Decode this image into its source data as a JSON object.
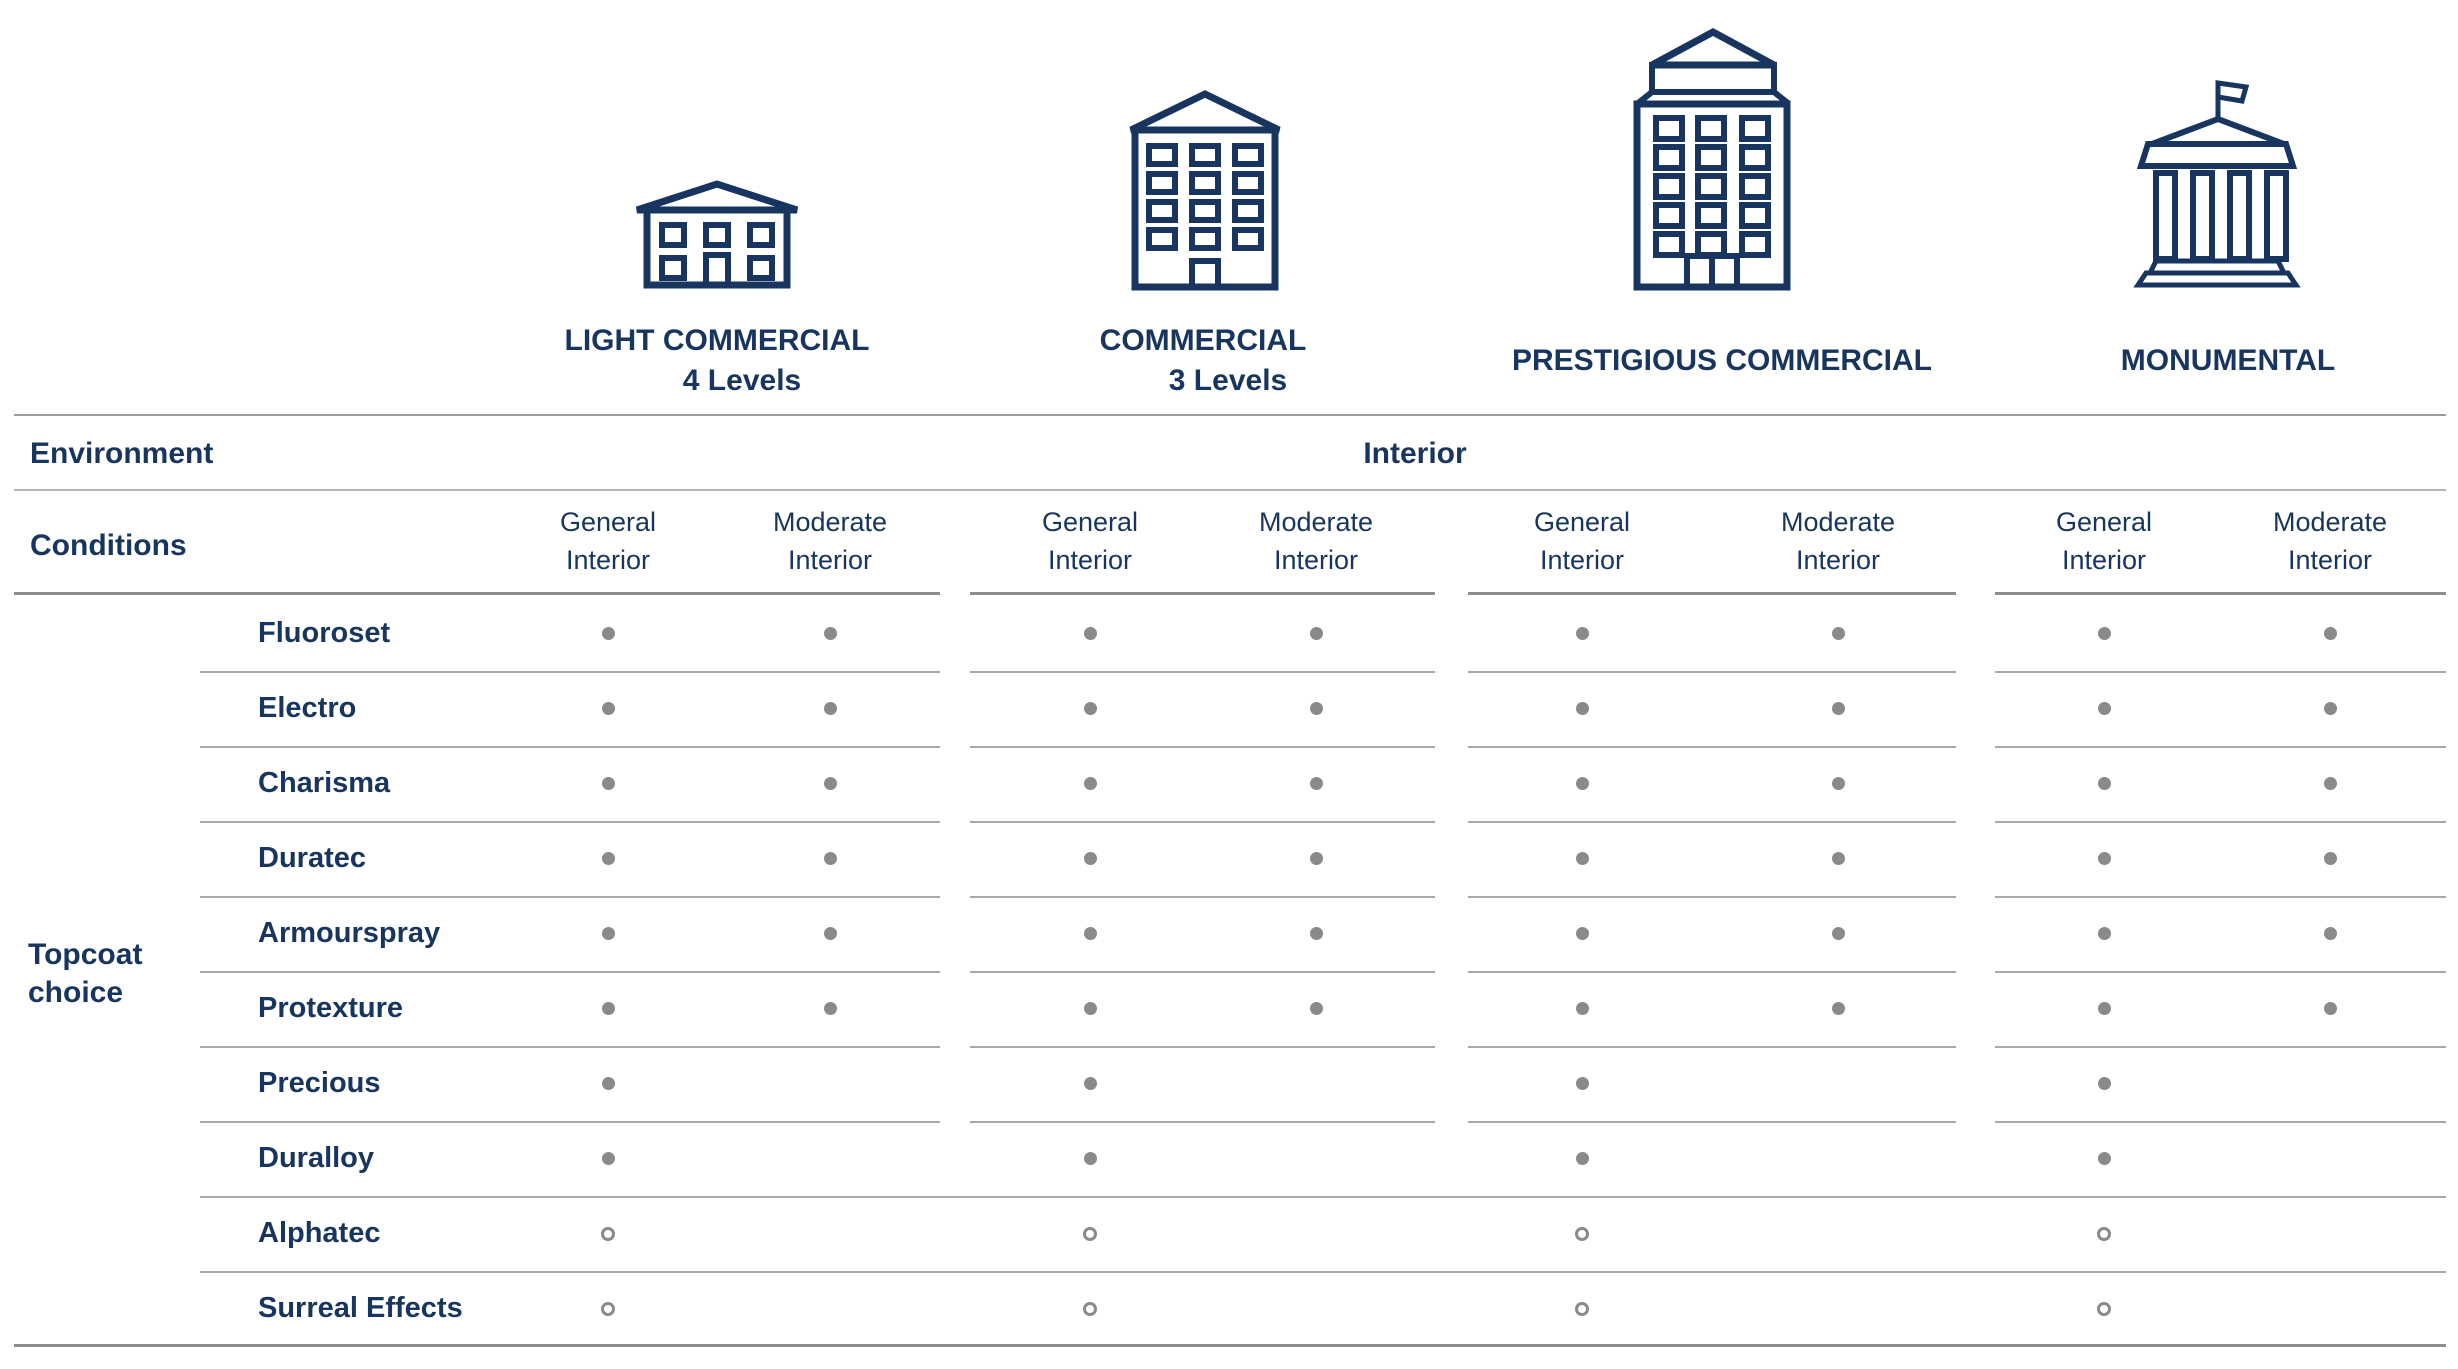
{
  "page": {
    "background": "#ffffff",
    "text_color": "#17355e",
    "dot_color": "#8a8a8a",
    "rule_color": "#a9a9a9"
  },
  "buildings": [
    {
      "label": "LIGHT COMMERCIAL",
      "sublabel": "4 Levels",
      "icon": "two-story-building-icon"
    },
    {
      "label": "COMMERCIAL",
      "sublabel": "3 Levels",
      "icon": "mid-rise-building-icon"
    },
    {
      "label": "PRESTIGIOUS COMMERCIAL",
      "sublabel": "",
      "icon": "high-rise-building-icon"
    },
    {
      "label": "MONUMENTAL",
      "sublabel": "",
      "icon": "monument-with-flag-icon"
    }
  ],
  "environment": {
    "label": "Environment",
    "value": "Interior"
  },
  "conditions": {
    "label": "Conditions",
    "groups": [
      {
        "columns": [
          "General Interior",
          "Moderate Interior"
        ]
      },
      {
        "columns": [
          "General Interior",
          "Moderate Interior"
        ]
      },
      {
        "columns": [
          "General Interior",
          "Moderate Interior"
        ]
      },
      {
        "columns": [
          "General Interior",
          "Moderate Interior"
        ]
      }
    ]
  },
  "topcoat": {
    "label_line1": "Topcoat",
    "label_line2": "choice",
    "rows": [
      {
        "name": "Fluoroset",
        "marks": [
          "filled",
          "filled",
          "filled",
          "filled",
          "filled",
          "filled",
          "filled",
          "filled"
        ]
      },
      {
        "name": "Electro",
        "marks": [
          "filled",
          "filled",
          "filled",
          "filled",
          "filled",
          "filled",
          "filled",
          "filled"
        ]
      },
      {
        "name": "Charisma",
        "marks": [
          "filled",
          "filled",
          "filled",
          "filled",
          "filled",
          "filled",
          "filled",
          "filled"
        ]
      },
      {
        "name": "Duratec",
        "marks": [
          "filled",
          "filled",
          "filled",
          "filled",
          "filled",
          "filled",
          "filled",
          "filled"
        ]
      },
      {
        "name": "Armourspray",
        "marks": [
          "filled",
          "filled",
          "filled",
          "filled",
          "filled",
          "filled",
          "filled",
          "filled"
        ]
      },
      {
        "name": "Protexture",
        "marks": [
          "filled",
          "filled",
          "filled",
          "filled",
          "filled",
          "filled",
          "filled",
          "filled"
        ]
      },
      {
        "name": "Precious",
        "marks": [
          "filled",
          "",
          "filled",
          "",
          "filled",
          "",
          "filled",
          ""
        ]
      },
      {
        "name": "Duralloy",
        "marks": [
          "filled",
          "",
          "filled",
          "",
          "filled",
          "",
          "filled",
          ""
        ]
      },
      {
        "name": "Alphatec",
        "marks": [
          "open",
          "",
          "open",
          "",
          "open",
          "",
          "open",
          ""
        ]
      },
      {
        "name": "Surreal Effects",
        "marks": [
          "open",
          "",
          "open",
          "",
          "open",
          "",
          "open",
          ""
        ]
      }
    ]
  }
}
